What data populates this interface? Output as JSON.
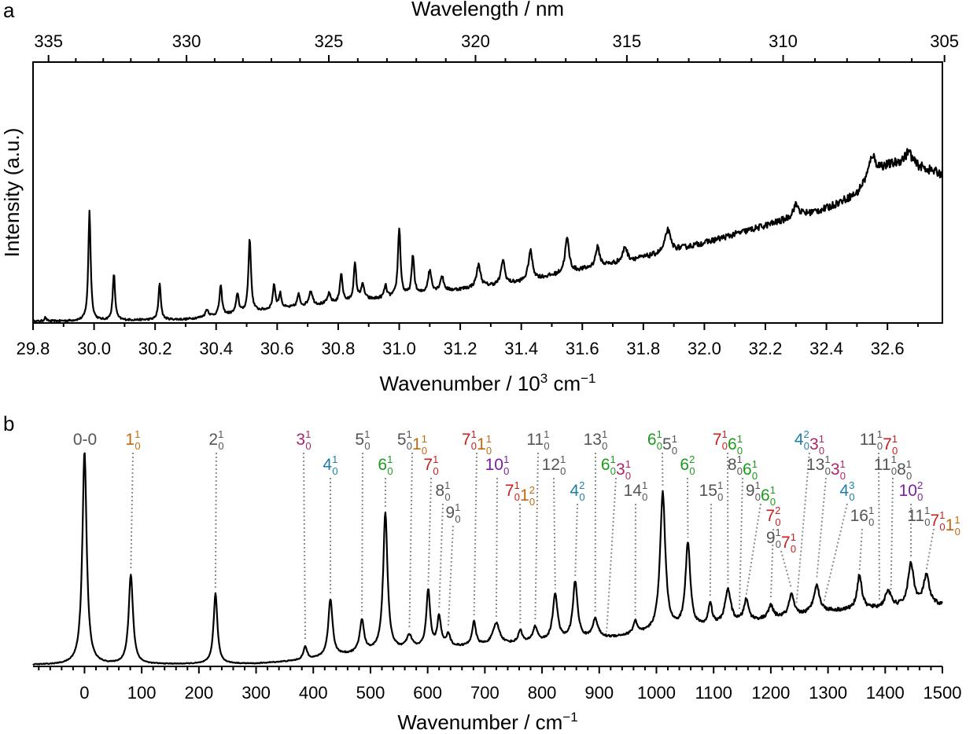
{
  "colors": {
    "gray": "#555555",
    "orange": "#bf6a10",
    "magenta": "#a8266a",
    "blue": "#1e7ea6",
    "green": "#1b9a1b",
    "red": "#c81e1e",
    "purple": "#7a1fa0",
    "ink": "#000000"
  },
  "chart_data": [
    {
      "panel": "a",
      "type": "line",
      "title": "",
      "xlabel": "Wavenumber / 10",
      "xlabel_sup": "3",
      "xlabel_unit": " cm",
      "xlabel_unit_sup": "−1",
      "x2label": "Wavelength / nm",
      "ylabel": "Intensity (a.u.)",
      "xlim": [
        29.8,
        32.78
      ],
      "x_ticks": [
        "29.8",
        "30.0",
        "30.2",
        "30.4",
        "30.6",
        "30.8",
        "31.0",
        "31.2",
        "31.4",
        "31.6",
        "31.8",
        "32.0",
        "32.2",
        "32.4",
        "32.6"
      ],
      "x_tick_values": [
        29.8,
        30.0,
        30.2,
        30.4,
        30.6,
        30.8,
        31.0,
        31.2,
        31.4,
        31.6,
        31.8,
        32.0,
        32.2,
        32.4,
        32.6
      ],
      "top_ticks": [
        "335",
        "330",
        "325",
        "320",
        "315",
        "310",
        "305"
      ],
      "top_tick_values": [
        335,
        330,
        325,
        320,
        315,
        310,
        305
      ],
      "ylim": [
        0,
        1.05
      ],
      "baseline": {
        "x": [
          29.8,
          30.3,
          30.6,
          31.0,
          31.4,
          31.8,
          32.0,
          32.2,
          32.4,
          32.5,
          32.55,
          32.65,
          32.78
        ],
        "y": [
          0.0,
          0.008,
          0.05,
          0.1,
          0.16,
          0.26,
          0.32,
          0.39,
          0.46,
          0.52,
          0.62,
          0.65,
          0.6
        ]
      },
      "peaks": [
        {
          "x": 29.84,
          "h": 0.015,
          "w": 0.004
        },
        {
          "x": 29.985,
          "h": 0.45,
          "w": 0.0045
        },
        {
          "x": 30.065,
          "h": 0.19,
          "w": 0.0045
        },
        {
          "x": 30.215,
          "h": 0.15,
          "w": 0.0045
        },
        {
          "x": 30.37,
          "h": 0.03,
          "w": 0.006
        },
        {
          "x": 30.415,
          "h": 0.12,
          "w": 0.005
        },
        {
          "x": 30.47,
          "h": 0.08,
          "w": 0.005
        },
        {
          "x": 30.51,
          "h": 0.3,
          "w": 0.005
        },
        {
          "x": 30.59,
          "h": 0.1,
          "w": 0.005
        },
        {
          "x": 30.61,
          "h": 0.06,
          "w": 0.005
        },
        {
          "x": 30.67,
          "h": 0.05,
          "w": 0.005
        },
        {
          "x": 30.71,
          "h": 0.06,
          "w": 0.007
        },
        {
          "x": 30.77,
          "h": 0.04,
          "w": 0.006
        },
        {
          "x": 30.81,
          "h": 0.12,
          "w": 0.005
        },
        {
          "x": 30.855,
          "h": 0.15,
          "w": 0.005
        },
        {
          "x": 30.88,
          "h": 0.06,
          "w": 0.007
        },
        {
          "x": 30.955,
          "h": 0.05,
          "w": 0.005
        },
        {
          "x": 31.0,
          "h": 0.28,
          "w": 0.005
        },
        {
          "x": 31.045,
          "h": 0.16,
          "w": 0.005
        },
        {
          "x": 31.1,
          "h": 0.09,
          "w": 0.007
        },
        {
          "x": 31.14,
          "h": 0.06,
          "w": 0.007
        },
        {
          "x": 31.26,
          "h": 0.09,
          "w": 0.008
        },
        {
          "x": 31.34,
          "h": 0.1,
          "w": 0.007
        },
        {
          "x": 31.43,
          "h": 0.12,
          "w": 0.008
        },
        {
          "x": 31.55,
          "h": 0.14,
          "w": 0.008
        },
        {
          "x": 31.65,
          "h": 0.08,
          "w": 0.008
        },
        {
          "x": 31.74,
          "h": 0.06,
          "w": 0.008
        },
        {
          "x": 31.88,
          "h": 0.09,
          "w": 0.01
        },
        {
          "x": 32.3,
          "h": 0.05,
          "w": 0.012
        },
        {
          "x": 32.55,
          "h": 0.06,
          "w": 0.01
        },
        {
          "x": 32.67,
          "h": 0.05,
          "w": 0.012
        }
      ],
      "noise_amplitude": 0.03
    },
    {
      "panel": "b",
      "type": "line",
      "title": "",
      "xlabel": "Wavenumber / cm",
      "xlabel_sup": "−1",
      "xlim": [
        -90,
        1500
      ],
      "x_ticks": [
        "0",
        "100",
        "200",
        "300",
        "400",
        "500",
        "600",
        "700",
        "800",
        "900",
        "1000",
        "1100",
        "1200",
        "1300",
        "1400",
        "1500"
      ],
      "x_tick_values": [
        0,
        100,
        200,
        300,
        400,
        500,
        600,
        700,
        800,
        900,
        1000,
        1100,
        1200,
        1300,
        1400,
        1500
      ],
      "ylim": [
        0,
        1.08
      ],
      "baseline": {
        "x": [
          -90,
          0,
          300,
          380,
          500,
          700,
          900,
          1100,
          1300,
          1500
        ],
        "y": [
          0.0,
          0.0,
          0.005,
          0.02,
          0.06,
          0.09,
          0.12,
          0.18,
          0.25,
          0.28
        ]
      },
      "peaks": [
        {
          "x": 0,
          "h": 1.0,
          "w": 4.5
        },
        {
          "x": 81,
          "h": 0.42,
          "w": 4.5
        },
        {
          "x": 229,
          "h": 0.33,
          "w": 4.0
        },
        {
          "x": 386,
          "h": 0.06,
          "w": 4.0
        },
        {
          "x": 430,
          "h": 0.27,
          "w": 4.5
        },
        {
          "x": 485,
          "h": 0.15,
          "w": 4.5
        },
        {
          "x": 526,
          "h": 0.65,
          "w": 4.5
        },
        {
          "x": 568,
          "h": 0.06,
          "w": 6
        },
        {
          "x": 601,
          "h": 0.27,
          "w": 4
        },
        {
          "x": 620,
          "h": 0.14,
          "w": 4
        },
        {
          "x": 636,
          "h": 0.06,
          "w": 4
        },
        {
          "x": 681,
          "h": 0.11,
          "w": 4
        },
        {
          "x": 720,
          "h": 0.1,
          "w": 7
        },
        {
          "x": 762,
          "h": 0.06,
          "w": 4
        },
        {
          "x": 788,
          "h": 0.07,
          "w": 5
        },
        {
          "x": 823,
          "h": 0.22,
          "w": 5
        },
        {
          "x": 858,
          "h": 0.27,
          "w": 5
        },
        {
          "x": 893,
          "h": 0.09,
          "w": 6
        },
        {
          "x": 963,
          "h": 0.06,
          "w": 4
        },
        {
          "x": 1011,
          "h": 0.65,
          "w": 5.5
        },
        {
          "x": 1055,
          "h": 0.4,
          "w": 5
        },
        {
          "x": 1094,
          "h": 0.1,
          "w": 4
        },
        {
          "x": 1125,
          "h": 0.16,
          "w": 6
        },
        {
          "x": 1157,
          "h": 0.1,
          "w": 5
        },
        {
          "x": 1200,
          "h": 0.06,
          "w": 5
        },
        {
          "x": 1236,
          "h": 0.1,
          "w": 5
        },
        {
          "x": 1280,
          "h": 0.13,
          "w": 6
        },
        {
          "x": 1355,
          "h": 0.16,
          "w": 5
        },
        {
          "x": 1405,
          "h": 0.08,
          "w": 6
        },
        {
          "x": 1445,
          "h": 0.2,
          "w": 6
        },
        {
          "x": 1472,
          "h": 0.14,
          "w": 6
        }
      ],
      "noise_amplitude": 0.018,
      "annotations": [
        {
          "x": 0,
          "label": [
            {
              "t": "0-0",
              "c": "gray"
            }
          ]
        },
        {
          "x": 81,
          "label": [
            {
              "t": "1",
              "sup": "1",
              "sub": "0",
              "c": "orange"
            }
          ]
        },
        {
          "x": 229,
          "label": [
            {
              "t": "2",
              "sup": "1",
              "sub": "0",
              "c": "gray"
            }
          ]
        },
        {
          "x": 386,
          "label": [
            {
              "t": "3",
              "sup": "1",
              "sub": "0",
              "c": "magenta"
            }
          ]
        },
        {
          "x": 430,
          "label": [
            {
              "t": "4",
              "sup": "1",
              "sub": "0",
              "c": "blue"
            }
          ]
        },
        {
          "x": 485,
          "label": [
            {
              "t": "5",
              "sup": "1",
              "sub": "0",
              "c": "gray"
            }
          ]
        },
        {
          "x": 526,
          "label": [
            {
              "t": "6",
              "sup": "1",
              "sub": "0",
              "c": "green"
            }
          ]
        },
        {
          "x": 568,
          "label": [
            {
              "t": "5",
              "sup": "1",
              "sub": "0",
              "c": "gray"
            },
            {
              "t": "1",
              "sup": "1",
              "sub": "0",
              "c": "orange"
            }
          ]
        },
        {
          "x": 601,
          "label": [
            {
              "t": "7",
              "sup": "1",
              "sub": "0",
              "c": "red"
            }
          ]
        },
        {
          "x": 620,
          "label": [
            {
              "t": "8",
              "sup": "1",
              "sub": "0",
              "c": "gray"
            }
          ]
        },
        {
          "x": 636,
          "label": [
            {
              "t": "9",
              "sup": "1",
              "sub": "0",
              "c": "gray"
            }
          ]
        },
        {
          "x": 681,
          "label": [
            {
              "t": "7",
              "sup": "1",
              "sub": "0",
              "c": "red"
            },
            {
              "t": "1",
              "sup": "1",
              "sub": "0",
              "c": "orange"
            }
          ]
        },
        {
          "x": 720,
          "label": [
            {
              "t": "10",
              "sup": "1",
              "sub": "0",
              "c": "purple"
            }
          ]
        },
        {
          "x": 762,
          "label": [
            {
              "t": "7",
              "sup": "1",
              "sub": "0",
              "c": "red"
            },
            {
              "t": "1",
              "sup": "2",
              "sub": "0",
              "c": "orange"
            }
          ]
        },
        {
          "x": 788,
          "label": [
            {
              "t": "11",
              "sup": "1",
              "sub": "0",
              "c": "gray"
            }
          ]
        },
        {
          "x": 823,
          "label": [
            {
              "t": "12",
              "sup": "1",
              "sub": "0",
              "c": "gray"
            }
          ]
        },
        {
          "x": 858,
          "label": [
            {
              "t": "4",
              "sup": "2",
              "sub": "0",
              "c": "blue"
            }
          ]
        },
        {
          "x": 893,
          "label": [
            {
              "t": "13",
              "sup": "1",
              "sub": "0",
              "c": "gray"
            }
          ]
        },
        {
          "x": 913,
          "label": [
            {
              "t": "6",
              "sup": "1",
              "sub": "0",
              "c": "green"
            },
            {
              "t": "3",
              "sup": "1",
              "sub": "0",
              "c": "magenta"
            }
          ]
        },
        {
          "x": 963,
          "label": [
            {
              "t": "14",
              "sup": "1",
              "sub": "0",
              "c": "gray"
            }
          ]
        },
        {
          "x": 1011,
          "label": [
            {
              "t": "6",
              "sup": "1",
              "sub": "0",
              "c": "green"
            },
            {
              "t": "5",
              "sup": "1",
              "sub": "0",
              "c": "gray"
            }
          ]
        },
        {
          "x": 1055,
          "label": [
            {
              "t": "6",
              "sup": "2",
              "sub": "0",
              "c": "green"
            }
          ]
        },
        {
          "x": 1094,
          "label": [
            {
              "t": "15",
              "sup": "1",
              "sub": "0",
              "c": "gray"
            }
          ]
        },
        {
          "x": 1125,
          "label": [
            {
              "t": "7",
              "sup": "1",
              "sub": "0",
              "c": "red"
            },
            {
              "t": "6",
              "sup": "1",
              "sub": "0",
              "c": "green"
            }
          ]
        },
        {
          "x": 1145,
          "label": [
            {
              "t": "8",
              "sup": "1",
              "sub": "0",
              "c": "gray"
            },
            {
              "t": "6",
              "sup": "1",
              "sub": "0",
              "c": "green"
            }
          ]
        },
        {
          "x": 1157,
          "label": [
            {
              "t": "9",
              "sup": "1",
              "sub": "0",
              "c": "gray"
            },
            {
              "t": "6",
              "sup": "1",
              "sub": "0",
              "c": "green"
            }
          ]
        },
        {
          "x": 1200,
          "label": [
            {
              "t": "7",
              "sup": "2",
              "sub": "0",
              "c": "red"
            }
          ]
        },
        {
          "x": 1236,
          "label": [
            {
              "t": "9",
              "sup": "1",
              "sub": "0",
              "c": "gray"
            },
            {
              "t": "7",
              "sup": "1",
              "sub": "0",
              "c": "red"
            }
          ]
        },
        {
          "x": 1245,
          "label": [
            {
              "t": "4",
              "sup": "2",
              "sub": "0",
              "c": "blue"
            },
            {
              "t": "3",
              "sup": "1",
              "sub": "0",
              "c": "magenta"
            }
          ]
        },
        {
          "x": 1280,
          "label": [
            {
              "t": "13",
              "sup": "1",
              "sub": "0",
              "c": "gray"
            },
            {
              "t": "3",
              "sup": "1",
              "sub": "0",
              "c": "magenta"
            }
          ]
        },
        {
          "x": 1293,
          "label": [
            {
              "t": "4",
              "sup": "3",
              "sub": "0",
              "c": "blue"
            }
          ]
        },
        {
          "x": 1355,
          "label": [
            {
              "t": "16",
              "sup": "1",
              "sub": "0",
              "c": "gray"
            }
          ]
        },
        {
          "x": 1390,
          "label": [
            {
              "t": "11",
              "sup": "1",
              "sub": "0",
              "c": "gray"
            },
            {
              "t": "7",
              "sup": "1",
              "sub": "0",
              "c": "red"
            }
          ]
        },
        {
          "x": 1410,
          "label": [
            {
              "t": "11",
              "sup": "1",
              "sub": "0",
              "c": "gray"
            },
            {
              "t": "8",
              "sup": "1",
              "sub": "0",
              "c": "gray"
            }
          ]
        },
        {
          "x": 1445,
          "label": [
            {
              "t": "10",
              "sup": "2",
              "sub": "0",
              "c": "purple"
            }
          ]
        },
        {
          "x": 1472,
          "label": [
            {
              "t": "11",
              "sup": "1",
              "sub": "0",
              "c": "gray"
            },
            {
              "t": "7",
              "sup": "1",
              "sub": "0",
              "c": "red"
            },
            {
              "t": "1",
              "sup": "1",
              "sub": "0",
              "c": "orange"
            }
          ]
        }
      ]
    }
  ],
  "panel_labels": [
    "a",
    "b"
  ]
}
